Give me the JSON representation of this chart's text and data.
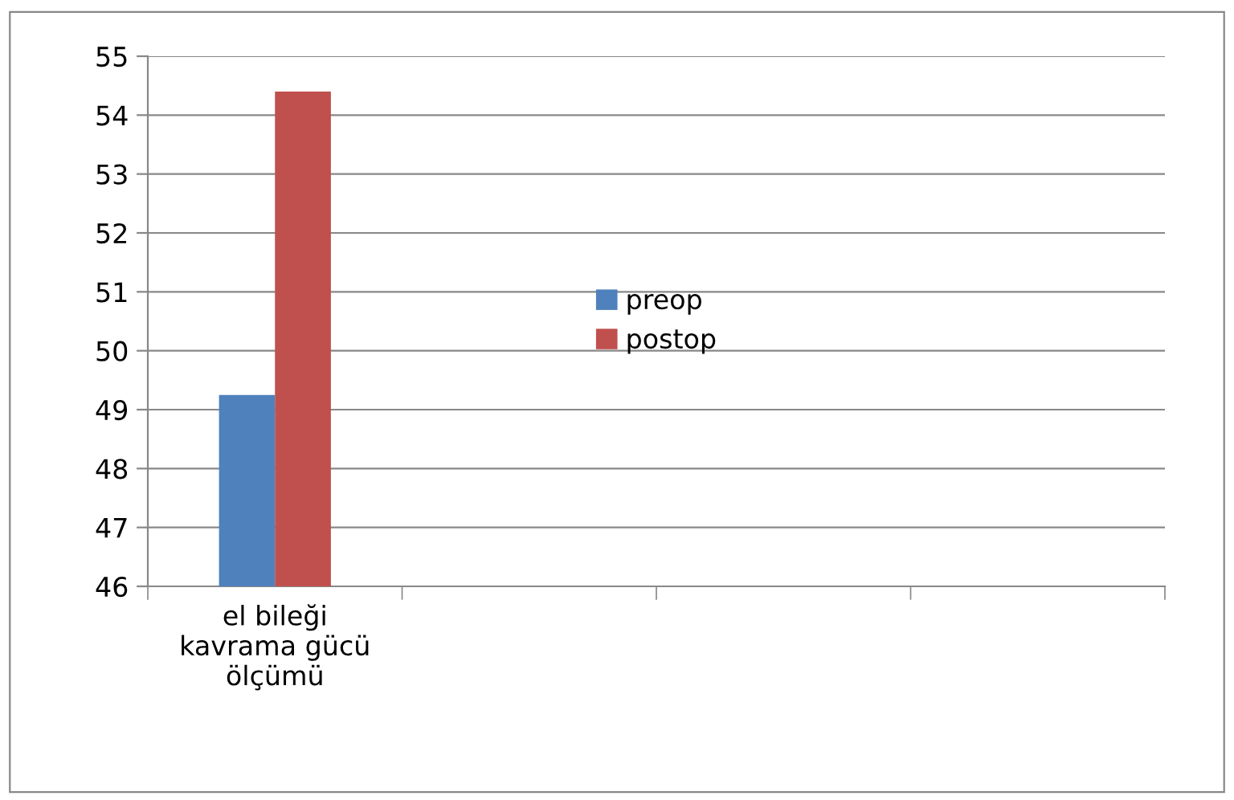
{
  "chart_data": {
    "type": "bar",
    "categories": [
      "el bileği\nkavrama gücü\nölçümü",
      null,
      null,
      null
    ],
    "series": [
      {
        "name": "preop",
        "color": "#4f81bd",
        "values": [
          49.25,
          null,
          null,
          null
        ]
      },
      {
        "name": "postop",
        "color": "#c0504d",
        "values": [
          54.4,
          null,
          null,
          null
        ]
      }
    ],
    "ylim": [
      46,
      55
    ],
    "yticks": [
      46,
      47,
      48,
      49,
      50,
      51,
      52,
      53,
      54,
      55
    ],
    "grid": "y",
    "legend": "center"
  }
}
